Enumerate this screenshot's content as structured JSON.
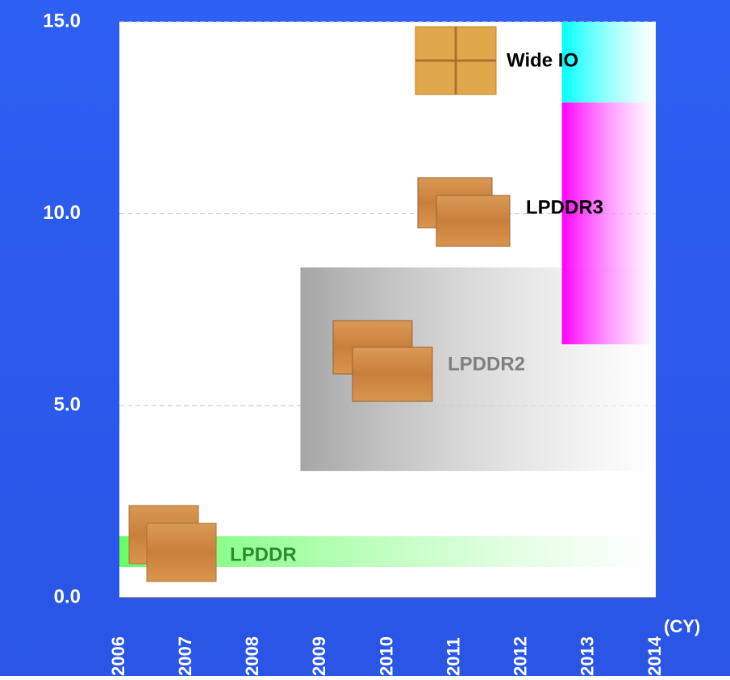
{
  "chart_data": {
    "type": "range-bar",
    "x_label": "(CY)",
    "xlim": [
      2006,
      2014
    ],
    "xticks": [
      2006,
      2007,
      2008,
      2009,
      2010,
      2011,
      2012,
      2013,
      2014
    ],
    "ylim": [
      0,
      15
    ],
    "yticks": [
      {
        "value": 0,
        "label": "0.0"
      },
      {
        "value": 5,
        "label": "5.0"
      },
      {
        "value": 10,
        "label": "10.0"
      },
      {
        "value": 15,
        "label": "15.0"
      }
    ],
    "grid": true,
    "series": [
      {
        "name": "LPDDR",
        "color": "#66ff66",
        "x": [
          2006,
          2014
        ],
        "values": [
          0.8,
          1.6
        ]
      },
      {
        "name": "LPDDR2",
        "color": "#a6a6a6",
        "x": [
          2008.7,
          2014
        ],
        "values": [
          3.3,
          8.6
        ]
      },
      {
        "name": "LPDDR3",
        "color": "#ff00ff",
        "x": [
          2012.6,
          2014
        ],
        "values": [
          6.6,
          12.9
        ]
      },
      {
        "name": "Wide IO",
        "color": "#00ffff",
        "x": [
          2012.6,
          2014
        ],
        "values": [
          12.9,
          15
        ]
      }
    ]
  }
}
